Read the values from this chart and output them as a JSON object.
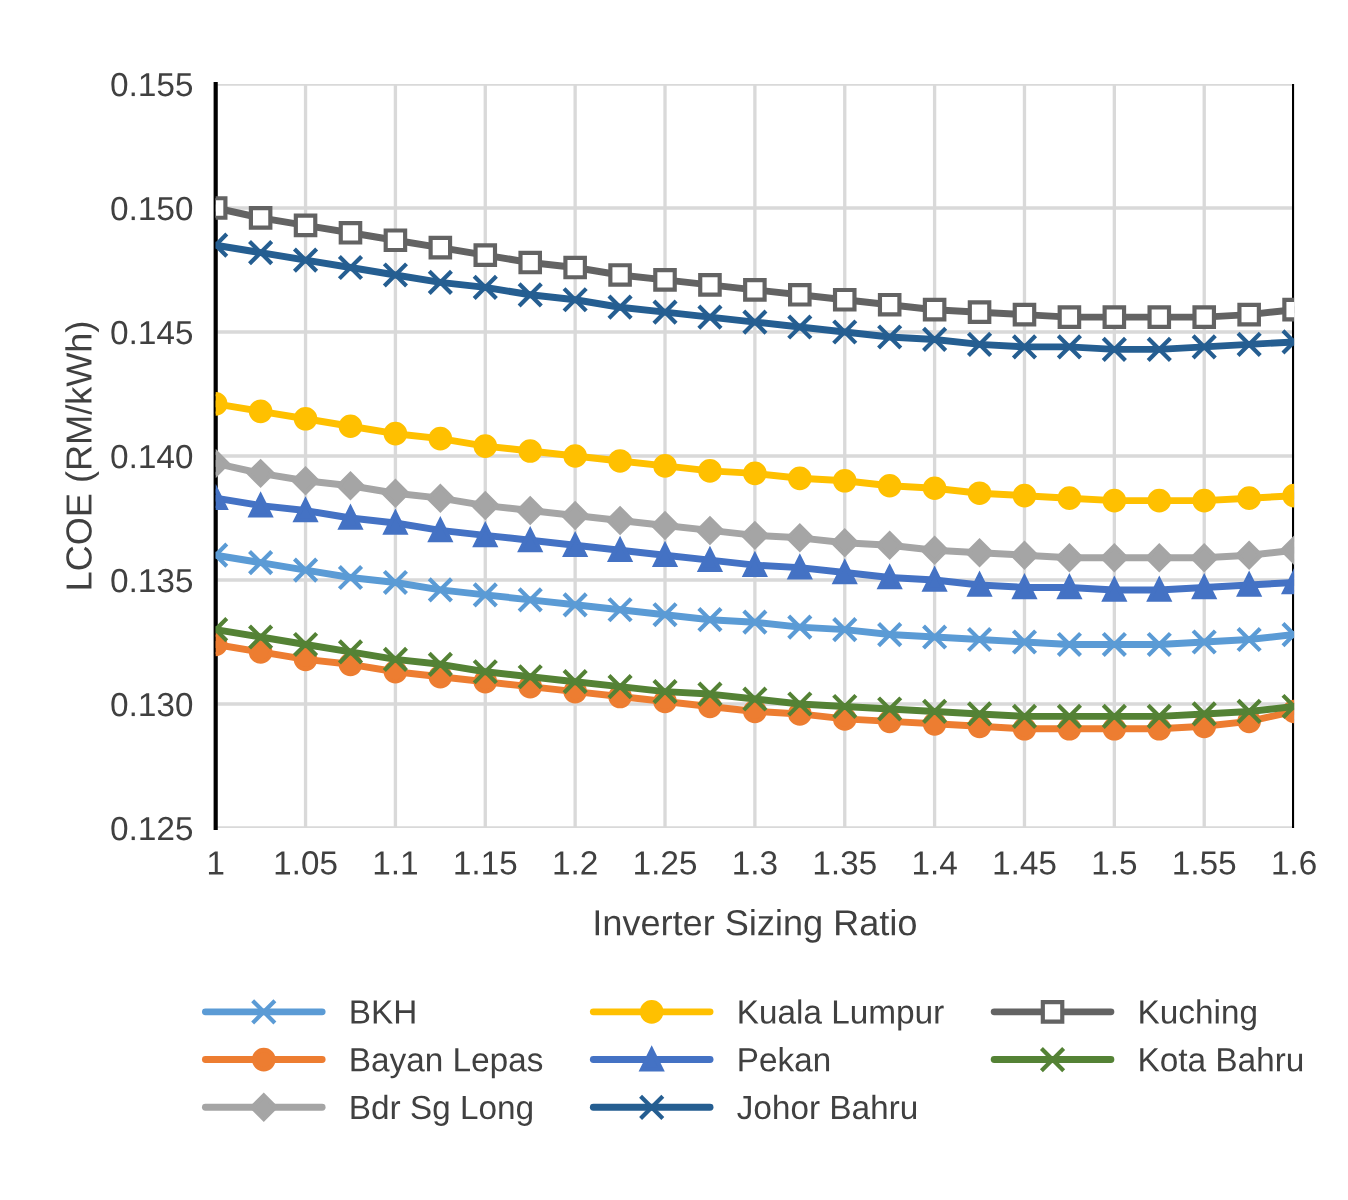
{
  "chart_data": {
    "type": "line",
    "xlabel": "Inverter Sizing Ratio",
    "ylabel": "LCOE (RM/kWh)",
    "x": [
      1,
      1.025,
      1.05,
      1.075,
      1.1,
      1.125,
      1.15,
      1.175,
      1.2,
      1.225,
      1.25,
      1.275,
      1.3,
      1.325,
      1.35,
      1.375,
      1.4,
      1.425,
      1.45,
      1.475,
      1.5,
      1.525,
      1.55,
      1.575,
      1.6
    ],
    "xlim": [
      1,
      1.6
    ],
    "xticks": [
      1,
      1.05,
      1.1,
      1.15,
      1.2,
      1.25,
      1.3,
      1.35,
      1.4,
      1.45,
      1.5,
      1.55,
      1.6
    ],
    "ylim": [
      0.125,
      0.155
    ],
    "yticks": [
      0.125,
      {
        "value": 0.13,
        "label": "0.130"
      },
      0.135,
      {
        "value": 0.14,
        "label": "0.140"
      },
      0.145,
      {
        "value": 0.15,
        "label": "0.150"
      },
      0.155
    ],
    "grid": true,
    "legend": "bottom",
    "line_style": "solid",
    "series": [
      {
        "name": "BKH",
        "color": "#5b9bd5",
        "marker": "cross",
        "values": [
          0.136,
          0.1357,
          0.1354,
          0.1351,
          0.1349,
          0.1346,
          0.1344,
          0.1342,
          0.134,
          0.1338,
          0.1336,
          0.1334,
          0.1333,
          0.1331,
          0.133,
          0.1328,
          0.1327,
          0.1326,
          0.1325,
          0.1324,
          0.1324,
          0.1324,
          0.1325,
          0.1326,
          0.1328
        ]
      },
      {
        "name": "Bayan Lepas",
        "color": "#ed7d31",
        "marker": "circle",
        "values": [
          0.1324,
          0.1321,
          0.1318,
          0.1316,
          0.1313,
          0.1311,
          0.1309,
          0.1307,
          0.1305,
          0.1303,
          0.1301,
          0.1299,
          0.1297,
          0.1296,
          0.1294,
          0.1293,
          0.1292,
          0.1291,
          0.129,
          0.129,
          0.129,
          0.129,
          0.1291,
          0.1293,
          0.1297
        ]
      },
      {
        "name": "Bdr Sg Long",
        "color": "#a5a5a5",
        "marker": "diamond",
        "values": [
          0.1397,
          0.1393,
          0.139,
          0.1388,
          0.1385,
          0.1383,
          0.138,
          0.1378,
          0.1376,
          0.1374,
          0.1372,
          0.137,
          0.1368,
          0.1367,
          0.1365,
          0.1364,
          0.1362,
          0.1361,
          0.136,
          0.1359,
          0.1359,
          0.1359,
          0.1359,
          0.136,
          0.1362
        ]
      },
      {
        "name": "Kuala Lumpur",
        "color": "#ffc000",
        "marker": "circle",
        "values": [
          0.1421,
          0.1418,
          0.1415,
          0.1412,
          0.1409,
          0.1407,
          0.1404,
          0.1402,
          0.14,
          0.1398,
          0.1396,
          0.1394,
          0.1393,
          0.1391,
          0.139,
          0.1388,
          0.1387,
          0.1385,
          0.1384,
          0.1383,
          0.1382,
          0.1382,
          0.1382,
          0.1383,
          0.1384
        ]
      },
      {
        "name": "Pekan",
        "color": "#4472c4",
        "marker": "triangle",
        "values": [
          0.1383,
          0.138,
          0.1378,
          0.1375,
          0.1373,
          0.137,
          0.1368,
          0.1366,
          0.1364,
          0.1362,
          0.136,
          0.1358,
          0.1356,
          0.1355,
          0.1353,
          0.1351,
          0.135,
          0.1348,
          0.1347,
          0.1347,
          0.1346,
          0.1346,
          0.1347,
          0.1348,
          0.1349
        ]
      },
      {
        "name": "Johor Bahru",
        "color": "#255e91",
        "marker": "cross",
        "values": [
          0.1485,
          0.1482,
          0.1479,
          0.1476,
          0.1473,
          0.147,
          0.1468,
          0.1465,
          0.1463,
          0.146,
          0.1458,
          0.1456,
          0.1454,
          0.1452,
          0.145,
          0.1448,
          0.1447,
          0.1445,
          0.1444,
          0.1444,
          0.1443,
          0.1443,
          0.1444,
          0.1445,
          0.1446
        ]
      },
      {
        "name": "Kuching",
        "color": "#636363",
        "marker": "square",
        "values": [
          0.15,
          0.1496,
          0.1493,
          0.149,
          0.1487,
          0.1484,
          0.1481,
          0.1478,
          0.1476,
          0.1473,
          0.1471,
          0.1469,
          0.1467,
          0.1465,
          0.1463,
          0.1461,
          0.1459,
          0.1458,
          0.1457,
          0.1456,
          0.1456,
          0.1456,
          0.1456,
          0.1457,
          0.1459
        ]
      },
      {
        "name": "Kota Bahru",
        "color": "#548235",
        "marker": "cross",
        "values": [
          0.133,
          0.1327,
          0.1324,
          0.1321,
          0.1318,
          0.1316,
          0.1313,
          0.1311,
          0.1309,
          0.1307,
          0.1305,
          0.1304,
          0.1302,
          0.13,
          0.1299,
          0.1298,
          0.1297,
          0.1296,
          0.1295,
          0.1295,
          0.1295,
          0.1295,
          0.1296,
          0.1297,
          0.1299
        ]
      }
    ]
  }
}
